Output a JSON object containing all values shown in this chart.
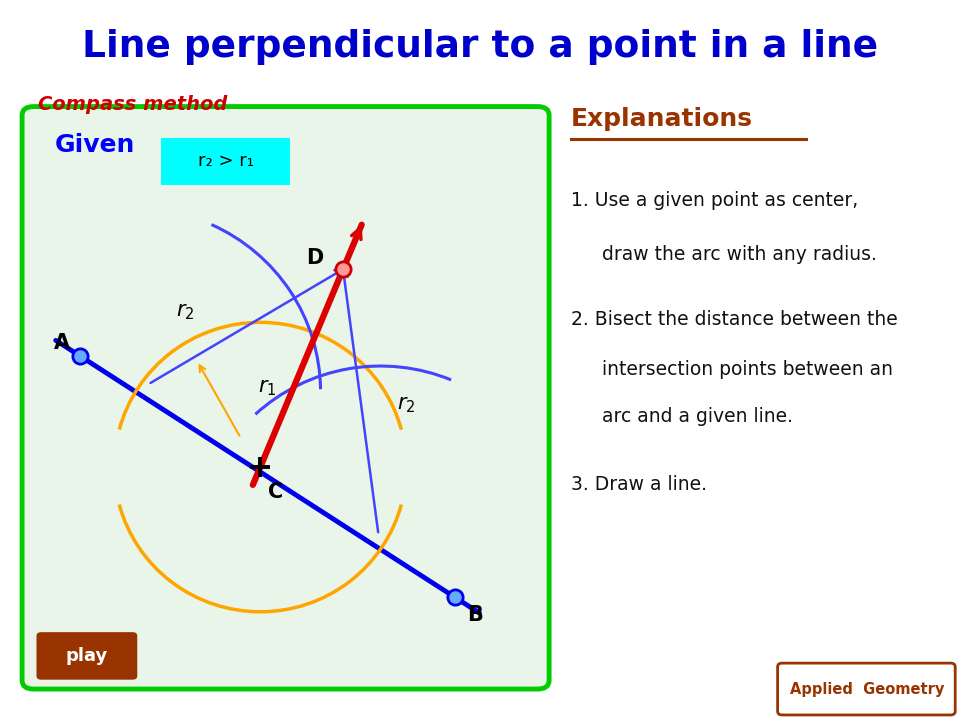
{
  "title": "Line perpendicular to a point in a line",
  "title_color": "#0000CC",
  "subtitle": "Compass method",
  "subtitle_color": "#CC0000",
  "bg_color": "#FFFFFF",
  "box_bg": "#E8F5E8",
  "box_border": "#00CC00",
  "given_text": "Given",
  "given_color": "#0000FF",
  "r2_label_box_bg": "#00FFFF",
  "r2_label_text": "r₂ > r₁",
  "r2_label_color": "#000000",
  "play_bg": "#993300",
  "play_text": "play",
  "play_text_color": "#FFFFFF",
  "applied_geometry_text": "Applied  Geometry",
  "applied_geometry_color": "#993300",
  "applied_geometry_border": "#993300",
  "explanations_title": "Explanations",
  "explanations_color": "#993300",
  "exp1_num": "1.",
  "exp1_text": "Use a given point as center,\n   draw the arc with any radius.",
  "exp2_num": "2.",
  "exp2_text": "Bisect the distance between the\n   intersection points between an\n   arc and a given line.",
  "exp3_num": "3.",
  "exp3_text": "Draw a line.",
  "A": [
    0.8,
    6.2
  ],
  "B": [
    8.5,
    1.2
  ],
  "C": [
    4.5,
    3.9
  ],
  "D": [
    6.2,
    8.0
  ],
  "r1": 3.0,
  "r2": 3.8,
  "point_color_blue": "#66AAFF",
  "point_color_red": "#FF9999",
  "line_blue": "#0000EE",
  "line_red": "#DD0000",
  "arc_orange": "#FFA500",
  "arc_blue": "#4444FF"
}
